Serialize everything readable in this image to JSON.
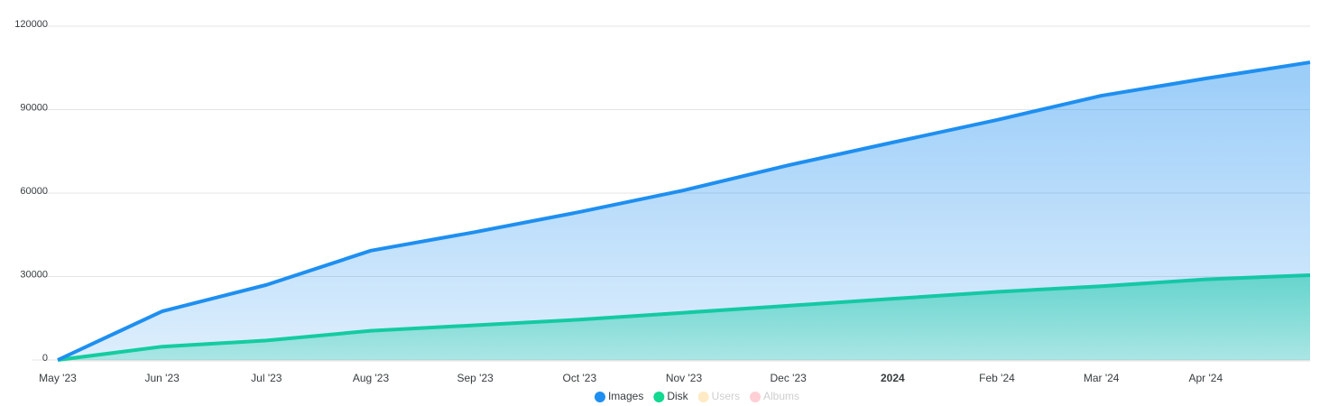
{
  "chart_data": {
    "type": "area",
    "categories": [
      "May '23",
      "Jun '23",
      "Jul '23",
      "Aug '23",
      "Sep '23",
      "Oct '23",
      "Nov '23",
      "Dec '23",
      "2024",
      "Feb '24",
      "Mar '24",
      "Apr '24",
      null
    ],
    "series": [
      {
        "name": "Images",
        "color": "#1e8ff0",
        "values": [
          0,
          17500,
          27000,
          39300,
          46000,
          53200,
          61000,
          70000,
          78200,
          86300,
          95000,
          101200,
          107000
        ]
      },
      {
        "name": "Disk",
        "color": "#12d890",
        "values": [
          0,
          4800,
          7000,
          10500,
          12500,
          14500,
          17000,
          19500,
          22000,
          24500,
          26500,
          29000,
          30500
        ]
      },
      {
        "name": "Users",
        "color": "#feb019",
        "hidden": true
      },
      {
        "name": "Albums",
        "color": "#ff4560",
        "hidden": true
      }
    ],
    "ylim": [
      0,
      120000
    ],
    "yticks": [
      0,
      30000,
      60000,
      90000,
      120000
    ],
    "grid": true,
    "legend": "bottom"
  }
}
